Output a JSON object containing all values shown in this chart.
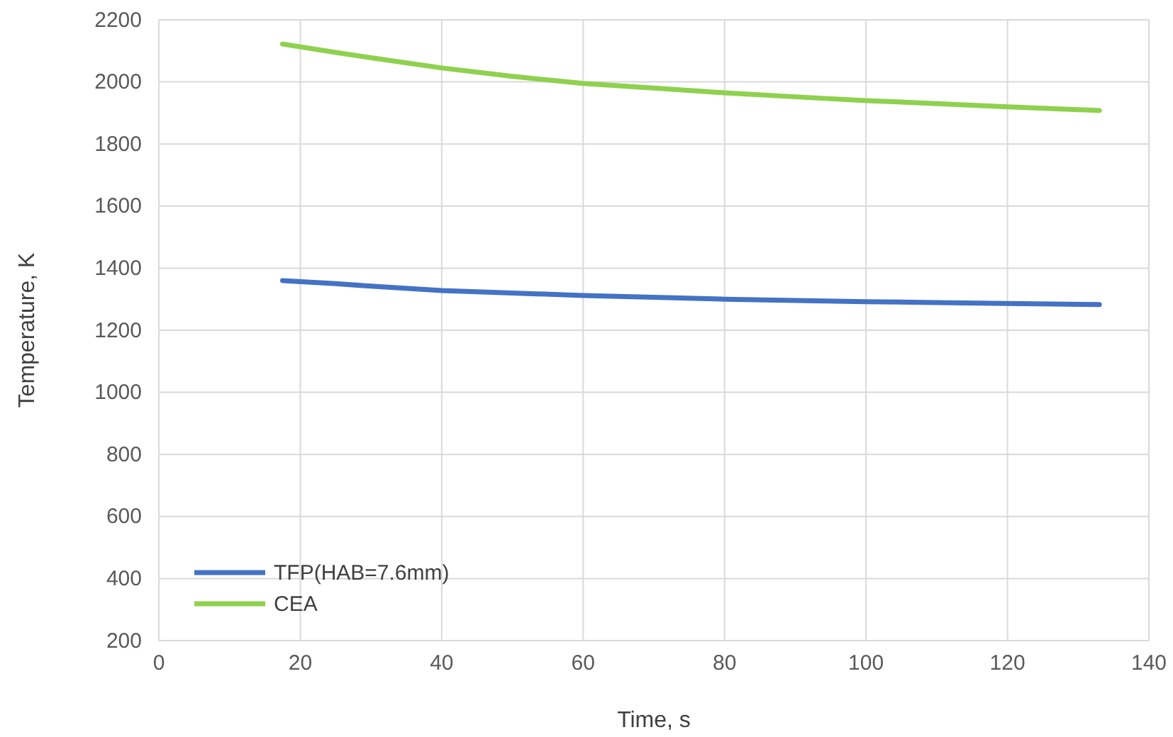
{
  "chart_data": {
    "type": "line",
    "xlabel": "Time, s",
    "ylabel": "Temperature, K",
    "xlim": [
      0,
      140
    ],
    "xticks": [
      0,
      20,
      40,
      60,
      80,
      100,
      120,
      140
    ],
    "ylim": [
      200,
      2200
    ],
    "yticks": [
      200,
      400,
      600,
      800,
      1000,
      1200,
      1400,
      1600,
      1800,
      2000,
      2200
    ],
    "grid": true,
    "legend": "bottom left",
    "marker": "none",
    "line_style": "solid",
    "series": [
      {
        "name": "TFP(HAB=7.6mm)",
        "color": "#4472c4",
        "x": [
          17.5,
          25,
          30,
          40,
          50,
          60,
          70,
          80,
          90,
          100,
          110,
          120,
          133
        ],
        "values": [
          1360,
          1350,
          1342,
          1328,
          1320,
          1312,
          1306,
          1300,
          1296,
          1292,
          1289,
          1286,
          1283
        ]
      },
      {
        "name": "CEA",
        "color": "#8fd14f",
        "x": [
          17.5,
          25,
          30,
          40,
          50,
          60,
          70,
          80,
          90,
          100,
          110,
          120,
          133
        ],
        "values": [
          2122,
          2095,
          2078,
          2045,
          2018,
          1995,
          1980,
          1965,
          1952,
          1940,
          1930,
          1920,
          1908
        ]
      }
    ]
  }
}
